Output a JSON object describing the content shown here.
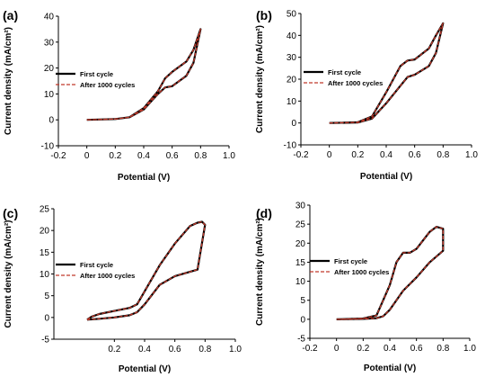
{
  "chart_data": [
    {
      "panel_label": "(a)",
      "type": "line",
      "xlabel": "Potential (V)",
      "ylabel": "Current density (mA/cm²)",
      "xlim": [
        -0.2,
        1.0
      ],
      "ylim": [
        -10,
        40
      ],
      "xticks": [
        "-0.2",
        "0",
        "0.2",
        "0.4",
        "0.6",
        "0.8",
        "1.0"
      ],
      "yticks": [
        "-10",
        "0",
        "10",
        "20",
        "30",
        "40"
      ],
      "xtick_values": [
        -0.2,
        0,
        0.2,
        0.4,
        0.6,
        0.8,
        1.0
      ],
      "ytick_values": [
        -10,
        0,
        10,
        20,
        30,
        40
      ],
      "series": [
        {
          "name": "First cycle",
          "color": "#000000",
          "dash": false,
          "x": [
            0.0,
            0.2,
            0.3,
            0.4,
            0.5,
            0.55,
            0.6,
            0.7,
            0.75,
            0.8,
            0.8,
            0.75,
            0.7,
            0.6,
            0.55,
            0.5,
            0.4,
            0.3,
            0.2,
            0.0
          ],
          "y": [
            0.0,
            0.3,
            1.0,
            4.5,
            11.0,
            16.0,
            18.5,
            22.5,
            27.0,
            35.0,
            35.0,
            22.0,
            17.0,
            13.0,
            12.5,
            10.0,
            4.0,
            1.0,
            0.3,
            0.0
          ]
        },
        {
          "name": "After 1000 cycles",
          "color": "#c0392b",
          "dash": true,
          "x": [
            0.0,
            0.2,
            0.3,
            0.4,
            0.5,
            0.55,
            0.6,
            0.7,
            0.75,
            0.8,
            0.8,
            0.75,
            0.7,
            0.6,
            0.55,
            0.5,
            0.4,
            0.3,
            0.2,
            0.0
          ],
          "y": [
            0.0,
            0.3,
            1.0,
            4.5,
            11.0,
            16.0,
            18.5,
            22.5,
            27.0,
            35.0,
            35.0,
            22.0,
            17.0,
            13.0,
            12.5,
            10.0,
            4.0,
            1.0,
            0.3,
            0.0
          ]
        }
      ]
    },
    {
      "panel_label": "(b)",
      "type": "line",
      "xlabel": "Potential (V)",
      "ylabel": "Current density (mA/cm²)",
      "xlim": [
        -0.2,
        1.0
      ],
      "ylim": [
        -10,
        50
      ],
      "xticks": [
        "-0.2",
        "0",
        "0.2",
        "0.4",
        "0.6",
        "0.8",
        "1.0"
      ],
      "yticks": [
        "-10",
        "0",
        "10",
        "20",
        "30",
        "40",
        "50"
      ],
      "xtick_values": [
        -0.2,
        0,
        0.2,
        0.4,
        0.6,
        0.8,
        1.0
      ],
      "ytick_values": [
        -10,
        0,
        10,
        20,
        30,
        40,
        50
      ],
      "series": [
        {
          "name": "First cycle",
          "color": "#000000",
          "dash": false,
          "x": [
            0.0,
            0.2,
            0.3,
            0.4,
            0.5,
            0.55,
            0.6,
            0.7,
            0.75,
            0.8,
            0.8,
            0.75,
            0.7,
            0.6,
            0.55,
            0.5,
            0.4,
            0.3,
            0.2,
            0.0
          ],
          "y": [
            0.0,
            0.3,
            3.0,
            14.0,
            26.0,
            28.5,
            29.0,
            34.0,
            40.0,
            45.5,
            45.5,
            32.0,
            26.0,
            22.0,
            21.0,
            17.0,
            9.0,
            2.0,
            0.2,
            0.0
          ]
        },
        {
          "name": "After 1000 cycles",
          "color": "#c0392b",
          "dash": true,
          "x": [
            0.0,
            0.2,
            0.3,
            0.4,
            0.5,
            0.55,
            0.6,
            0.7,
            0.75,
            0.8,
            0.8,
            0.75,
            0.7,
            0.6,
            0.55,
            0.5,
            0.4,
            0.3,
            0.2,
            0.0
          ],
          "y": [
            0.0,
            0.3,
            3.0,
            14.0,
            26.0,
            28.5,
            29.0,
            34.0,
            40.0,
            45.5,
            45.5,
            32.0,
            26.0,
            22.0,
            21.0,
            17.0,
            9.0,
            2.0,
            0.2,
            0.0
          ]
        }
      ]
    },
    {
      "panel_label": "(c)",
      "type": "line",
      "xlabel": "Potential (V)",
      "ylabel": "Current density (mA/cm²)",
      "xlim": [
        -0.2,
        1.0
      ],
      "ylim": [
        -5,
        25
      ],
      "xticks": [
        "0.2",
        "0.4",
        "0.6",
        "0.8",
        "1.0"
      ],
      "yticks": [
        "-5",
        "0",
        "5",
        "10",
        "15",
        "20",
        "25"
      ],
      "xtick_values": [
        0.2,
        0.4,
        0.6,
        0.8,
        1.0
      ],
      "ytick_values": [
        -5,
        0,
        5,
        10,
        15,
        20,
        25
      ],
      "series": [
        {
          "name": "First cycle",
          "color": "#000000",
          "dash": false,
          "x": [
            0.02,
            0.05,
            0.1,
            0.2,
            0.3,
            0.35,
            0.4,
            0.5,
            0.6,
            0.7,
            0.75,
            0.78,
            0.8,
            0.8,
            0.75,
            0.7,
            0.6,
            0.5,
            0.4,
            0.35,
            0.3,
            0.2,
            0.1,
            0.02
          ],
          "y": [
            -0.5,
            0.2,
            0.8,
            1.5,
            2.2,
            3.0,
            6.0,
            12.0,
            17.0,
            21.0,
            21.8,
            22.0,
            21.3,
            21.3,
            11.0,
            10.5,
            9.5,
            7.5,
            3.0,
            1.2,
            0.5,
            0.0,
            -0.3,
            -0.5
          ]
        },
        {
          "name": "After 1000 cycles",
          "color": "#c0392b",
          "dash": true,
          "x": [
            0.02,
            0.05,
            0.1,
            0.2,
            0.3,
            0.35,
            0.4,
            0.5,
            0.6,
            0.7,
            0.75,
            0.78,
            0.8,
            0.8,
            0.75,
            0.7,
            0.6,
            0.5,
            0.4,
            0.35,
            0.3,
            0.2,
            0.1,
            0.02
          ],
          "y": [
            -0.5,
            0.2,
            0.8,
            1.5,
            2.2,
            3.0,
            6.0,
            12.0,
            17.0,
            21.0,
            21.8,
            22.0,
            21.3,
            21.3,
            11.0,
            10.5,
            9.5,
            7.5,
            3.0,
            1.2,
            0.5,
            0.0,
            -0.3,
            -0.5
          ]
        }
      ]
    },
    {
      "panel_label": "(d)",
      "type": "line",
      "xlabel": "Potential (V)",
      "ylabel": "Current density (mA/cm²)",
      "xlim": [
        -0.2,
        1.0
      ],
      "ylim": [
        -5,
        30
      ],
      "xticks": [
        "-0.2",
        "0",
        "0.2",
        "0.4",
        "0.6",
        "0.8",
        "1.0"
      ],
      "yticks": [
        "-5",
        "0",
        "5",
        "10",
        "15",
        "20",
        "25",
        "30"
      ],
      "xtick_values": [
        -0.2,
        0,
        0.2,
        0.4,
        0.6,
        0.8,
        1.0
      ],
      "ytick_values": [
        -5,
        0,
        5,
        10,
        15,
        20,
        25,
        30
      ],
      "series": [
        {
          "name": "First cycle",
          "color": "#000000",
          "dash": false,
          "x": [
            0.0,
            0.2,
            0.3,
            0.4,
            0.45,
            0.5,
            0.55,
            0.6,
            0.7,
            0.75,
            0.8,
            0.8,
            0.7,
            0.6,
            0.5,
            0.4,
            0.35,
            0.3,
            0.2,
            0.0
          ],
          "y": [
            0.0,
            0.2,
            1.0,
            9.0,
            15.0,
            17.5,
            17.5,
            18.5,
            23.0,
            24.3,
            23.8,
            18.0,
            15.0,
            11.0,
            7.5,
            2.5,
            0.8,
            0.3,
            0.1,
            0.0
          ]
        },
        {
          "name": "After 1000 cycles",
          "color": "#c0392b",
          "dash": true,
          "x": [
            0.0,
            0.2,
            0.3,
            0.4,
            0.45,
            0.5,
            0.55,
            0.6,
            0.7,
            0.75,
            0.8,
            0.8,
            0.7,
            0.6,
            0.5,
            0.4,
            0.35,
            0.3,
            0.2,
            0.0
          ],
          "y": [
            0.0,
            0.2,
            1.0,
            9.0,
            15.0,
            17.5,
            17.5,
            18.5,
            23.0,
            24.3,
            23.8,
            18.0,
            15.0,
            11.0,
            7.5,
            2.5,
            0.8,
            0.3,
            0.1,
            0.0
          ]
        }
      ]
    }
  ]
}
